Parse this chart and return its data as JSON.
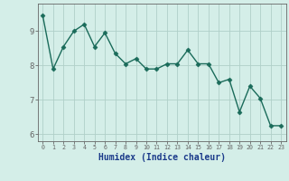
{
  "x": [
    0,
    1,
    2,
    3,
    4,
    5,
    6,
    7,
    8,
    9,
    10,
    11,
    12,
    13,
    14,
    15,
    16,
    17,
    18,
    19,
    20,
    21,
    22,
    23
  ],
  "y": [
    9.45,
    7.9,
    8.55,
    9.0,
    9.2,
    8.55,
    8.95,
    8.35,
    8.05,
    8.2,
    7.9,
    7.9,
    8.05,
    8.05,
    8.45,
    8.05,
    8.05,
    7.5,
    7.6,
    6.65,
    7.4,
    7.05,
    6.25,
    6.25
  ],
  "line_color": "#1a6b5a",
  "marker": "D",
  "marker_size": 2.5,
  "bg_color": "#d4eee8",
  "grid_color": "#b0cfc8",
  "axis_color": "#666666",
  "xlabel": "Humidex (Indice chaleur)",
  "xlabel_fontsize": 7,
  "xlabel_color": "#1a3a8a",
  "tick_label_color": "#1a3a8a",
  "ylim": [
    5.8,
    9.8
  ],
  "xlim": [
    -0.5,
    23.5
  ],
  "yticks": [
    6,
    7,
    8,
    9
  ],
  "xticks": [
    0,
    1,
    2,
    3,
    4,
    5,
    6,
    7,
    8,
    9,
    10,
    11,
    12,
    13,
    14,
    15,
    16,
    17,
    18,
    19,
    20,
    21,
    22,
    23
  ]
}
